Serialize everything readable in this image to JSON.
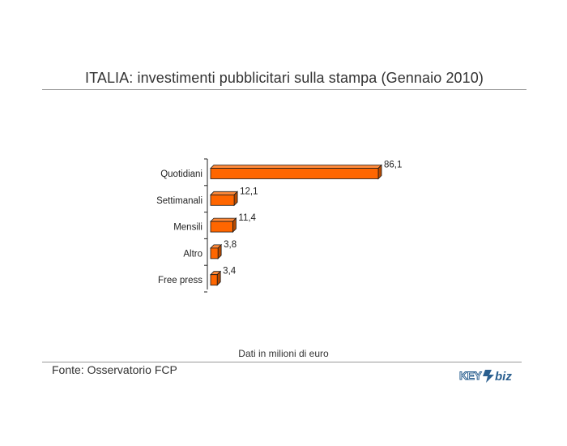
{
  "page": {
    "source": "Fonte: Osservatorio FCP",
    "note": "Dati in milioni di euro",
    "logo_text": "KEY4biz"
  },
  "colors": {
    "bar_front": "#ff6600",
    "bar_top": "#ff8a3a",
    "bar_side": "#b84a00",
    "bar_edge": "#1a1a1a",
    "axis": "#222222"
  },
  "chart_data": {
    "type": "bar",
    "orientation": "horizontal",
    "style": "3d",
    "title": "ITALIA: investimenti pubblicitari sulla stampa (Gennaio 2010)",
    "categories": [
      "Quotidiani",
      "Settimanali",
      "Mensili",
      "Altro",
      "Free press"
    ],
    "values": [
      86.1,
      12.1,
      11.4,
      3.8,
      3.4
    ],
    "value_labels": [
      "86,1",
      "12,1",
      "11,4",
      "3,8",
      "3,4"
    ],
    "xlabel": "",
    "ylabel": "",
    "xlim": [
      0,
      86.1
    ],
    "grid": false,
    "legend": "none"
  }
}
